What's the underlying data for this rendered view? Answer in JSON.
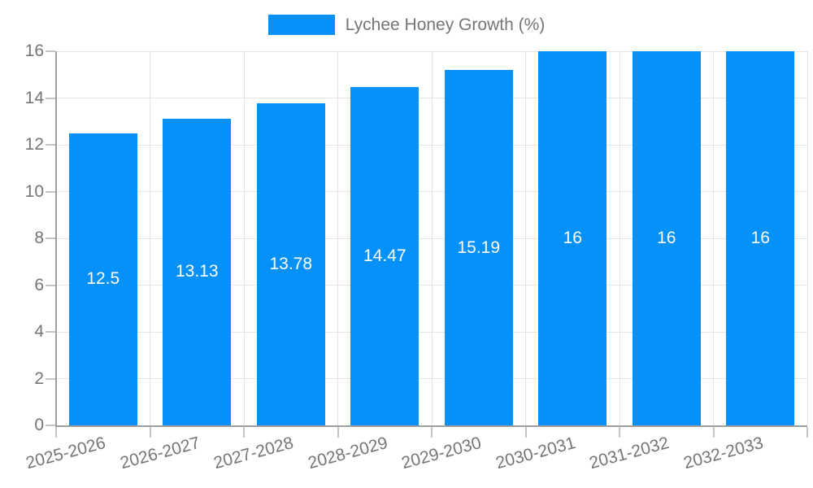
{
  "chart_data": {
    "type": "bar",
    "title": "",
    "legend": {
      "label": "Lychee Honey Growth (%)",
      "position": "top"
    },
    "categories": [
      "2025-2026",
      "2026-2027",
      "2027-2028",
      "2028-2029",
      "2029-2030",
      "2030-2031",
      "2031-2032",
      "2032-2033"
    ],
    "series": [
      {
        "name": "Lychee Honey Growth (%)",
        "values": [
          12.5,
          13.13,
          13.78,
          14.47,
          15.19,
          16,
          16,
          16
        ]
      }
    ],
    "bar_labels": [
      "12.5",
      "13.13",
      "13.78",
      "14.47",
      "15.19",
      "16",
      "16",
      "16"
    ],
    "xlabel": "",
    "ylabel": "",
    "ylim": [
      0,
      16
    ],
    "yticks": [
      0,
      2,
      4,
      6,
      8,
      10,
      12,
      14,
      16
    ],
    "grid": true,
    "colors": {
      "bar": "#0591f7",
      "text": "#757575",
      "grid": "#e5e5e5",
      "axis": "#9e9e9e",
      "tick": "#c4c4c4",
      "bar_label": "#ffffff",
      "background": "#ffffff"
    }
  }
}
